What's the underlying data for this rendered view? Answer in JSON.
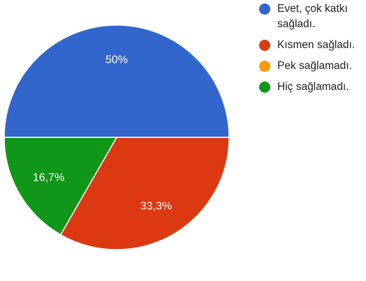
{
  "chart_data": {
    "type": "pie",
    "slices": [
      {
        "label": "Evet, çok katkı sağladı.",
        "value": 50,
        "value_label": "50%",
        "color": "#3366cc"
      },
      {
        "label": "Kısmen sağladı.",
        "value": 33.3,
        "value_label": "33,3%",
        "color": "#dc3912"
      },
      {
        "label": "Pek sağlamadı.",
        "value": 0,
        "value_label": "",
        "color": "#ff9900"
      },
      {
        "label": "Hiç sağlamadı.",
        "value": 16.7,
        "value_label": "16,7%",
        "color": "#109618"
      }
    ],
    "legend_position": "right"
  }
}
